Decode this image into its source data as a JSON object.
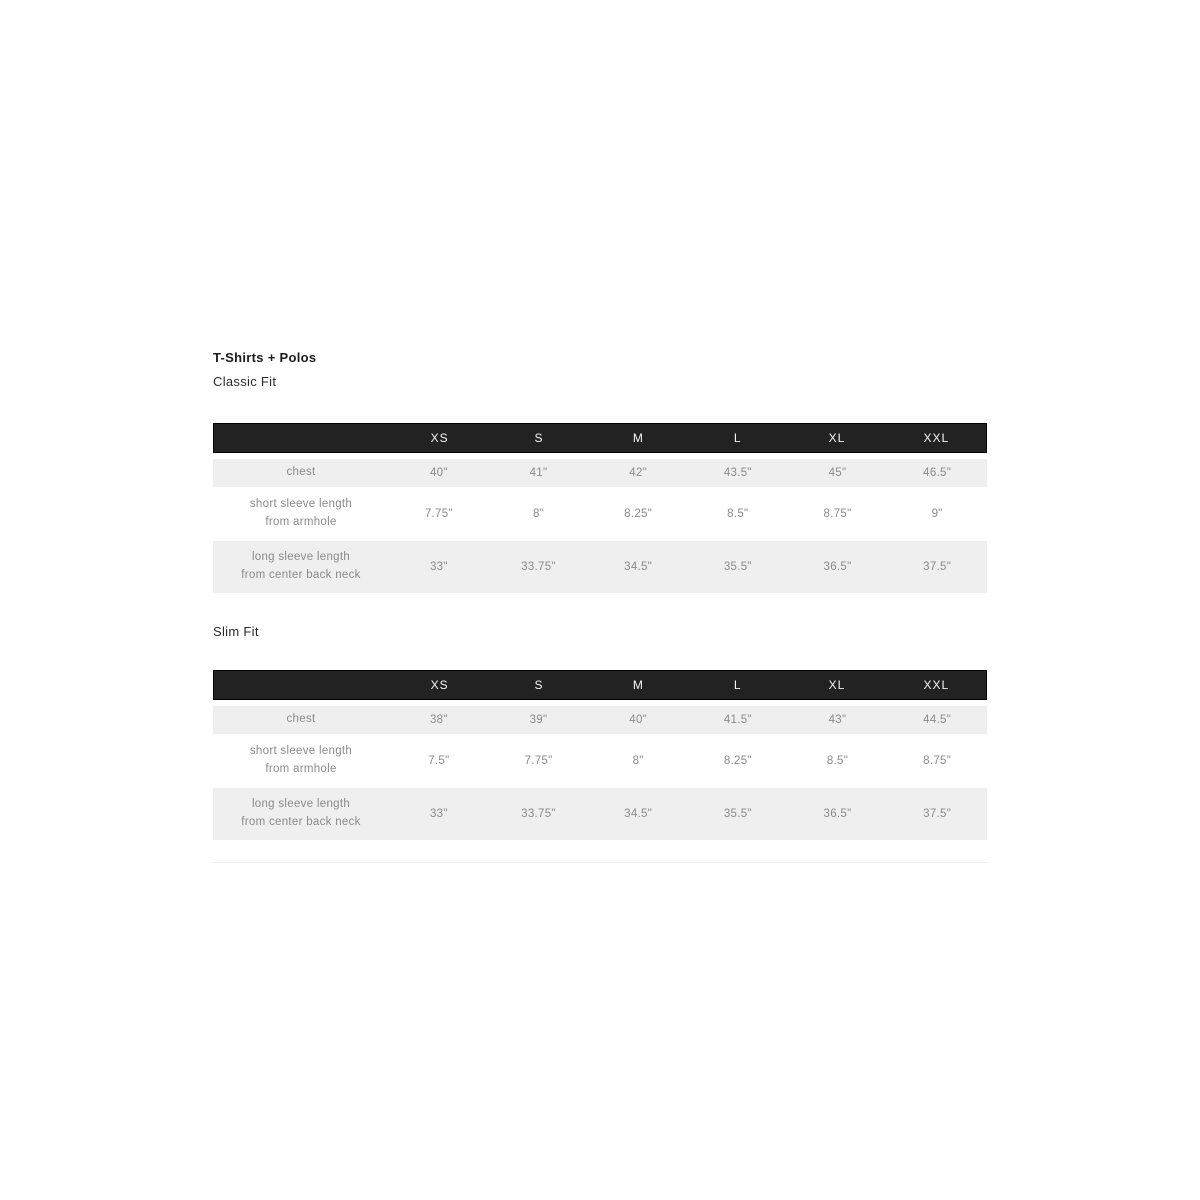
{
  "section": {
    "title": "T-Shirts + Polos",
    "tables": [
      {
        "fit_label": "Classic Fit",
        "columns": [
          "XS",
          "S",
          "M",
          "L",
          "XL",
          "XXL"
        ],
        "rows": [
          {
            "label_lines": [
              "chest"
            ],
            "values": [
              "40\"",
              "41\"",
              "42\"",
              "43.5\"",
              "45\"",
              "46.5\""
            ]
          },
          {
            "label_lines": [
              "short sleeve length",
              "from armhole"
            ],
            "values": [
              "7.75\"",
              "8\"",
              "8.25\"",
              "8.5\"",
              "8.75\"",
              "9\""
            ]
          },
          {
            "label_lines": [
              "long sleeve length",
              "from center back neck"
            ],
            "values": [
              "33\"",
              "33.75\"",
              "34.5\"",
              "35.5\"",
              "36.5\"",
              "37.5\""
            ]
          }
        ]
      },
      {
        "fit_label": "Slim Fit",
        "columns": [
          "XS",
          "S",
          "M",
          "L",
          "XL",
          "XXL"
        ],
        "rows": [
          {
            "label_lines": [
              "chest"
            ],
            "values": [
              "38\"",
              "39\"",
              "40\"",
              "41.5\"",
              "43\"",
              "44.5\""
            ]
          },
          {
            "label_lines": [
              "short sleeve length",
              "from armhole"
            ],
            "values": [
              "7.5\"",
              "7.75\"",
              "8\"",
              "8.25\"",
              "8.5\"",
              "8.75\""
            ]
          },
          {
            "label_lines": [
              "long sleeve length",
              "from center back neck"
            ],
            "values": [
              "33\"",
              "33.75\"",
              "34.5\"",
              "35.5\"",
              "36.5\"",
              "37.5\""
            ]
          }
        ]
      }
    ]
  },
  "colors": {
    "header_bg": "#222222",
    "header_text": "#f5f5f5",
    "row_alt_bg": "#efefef",
    "row_text": "#8a8a8a",
    "title_text": "#1c1c1c",
    "page_bg": "#ffffff"
  }
}
